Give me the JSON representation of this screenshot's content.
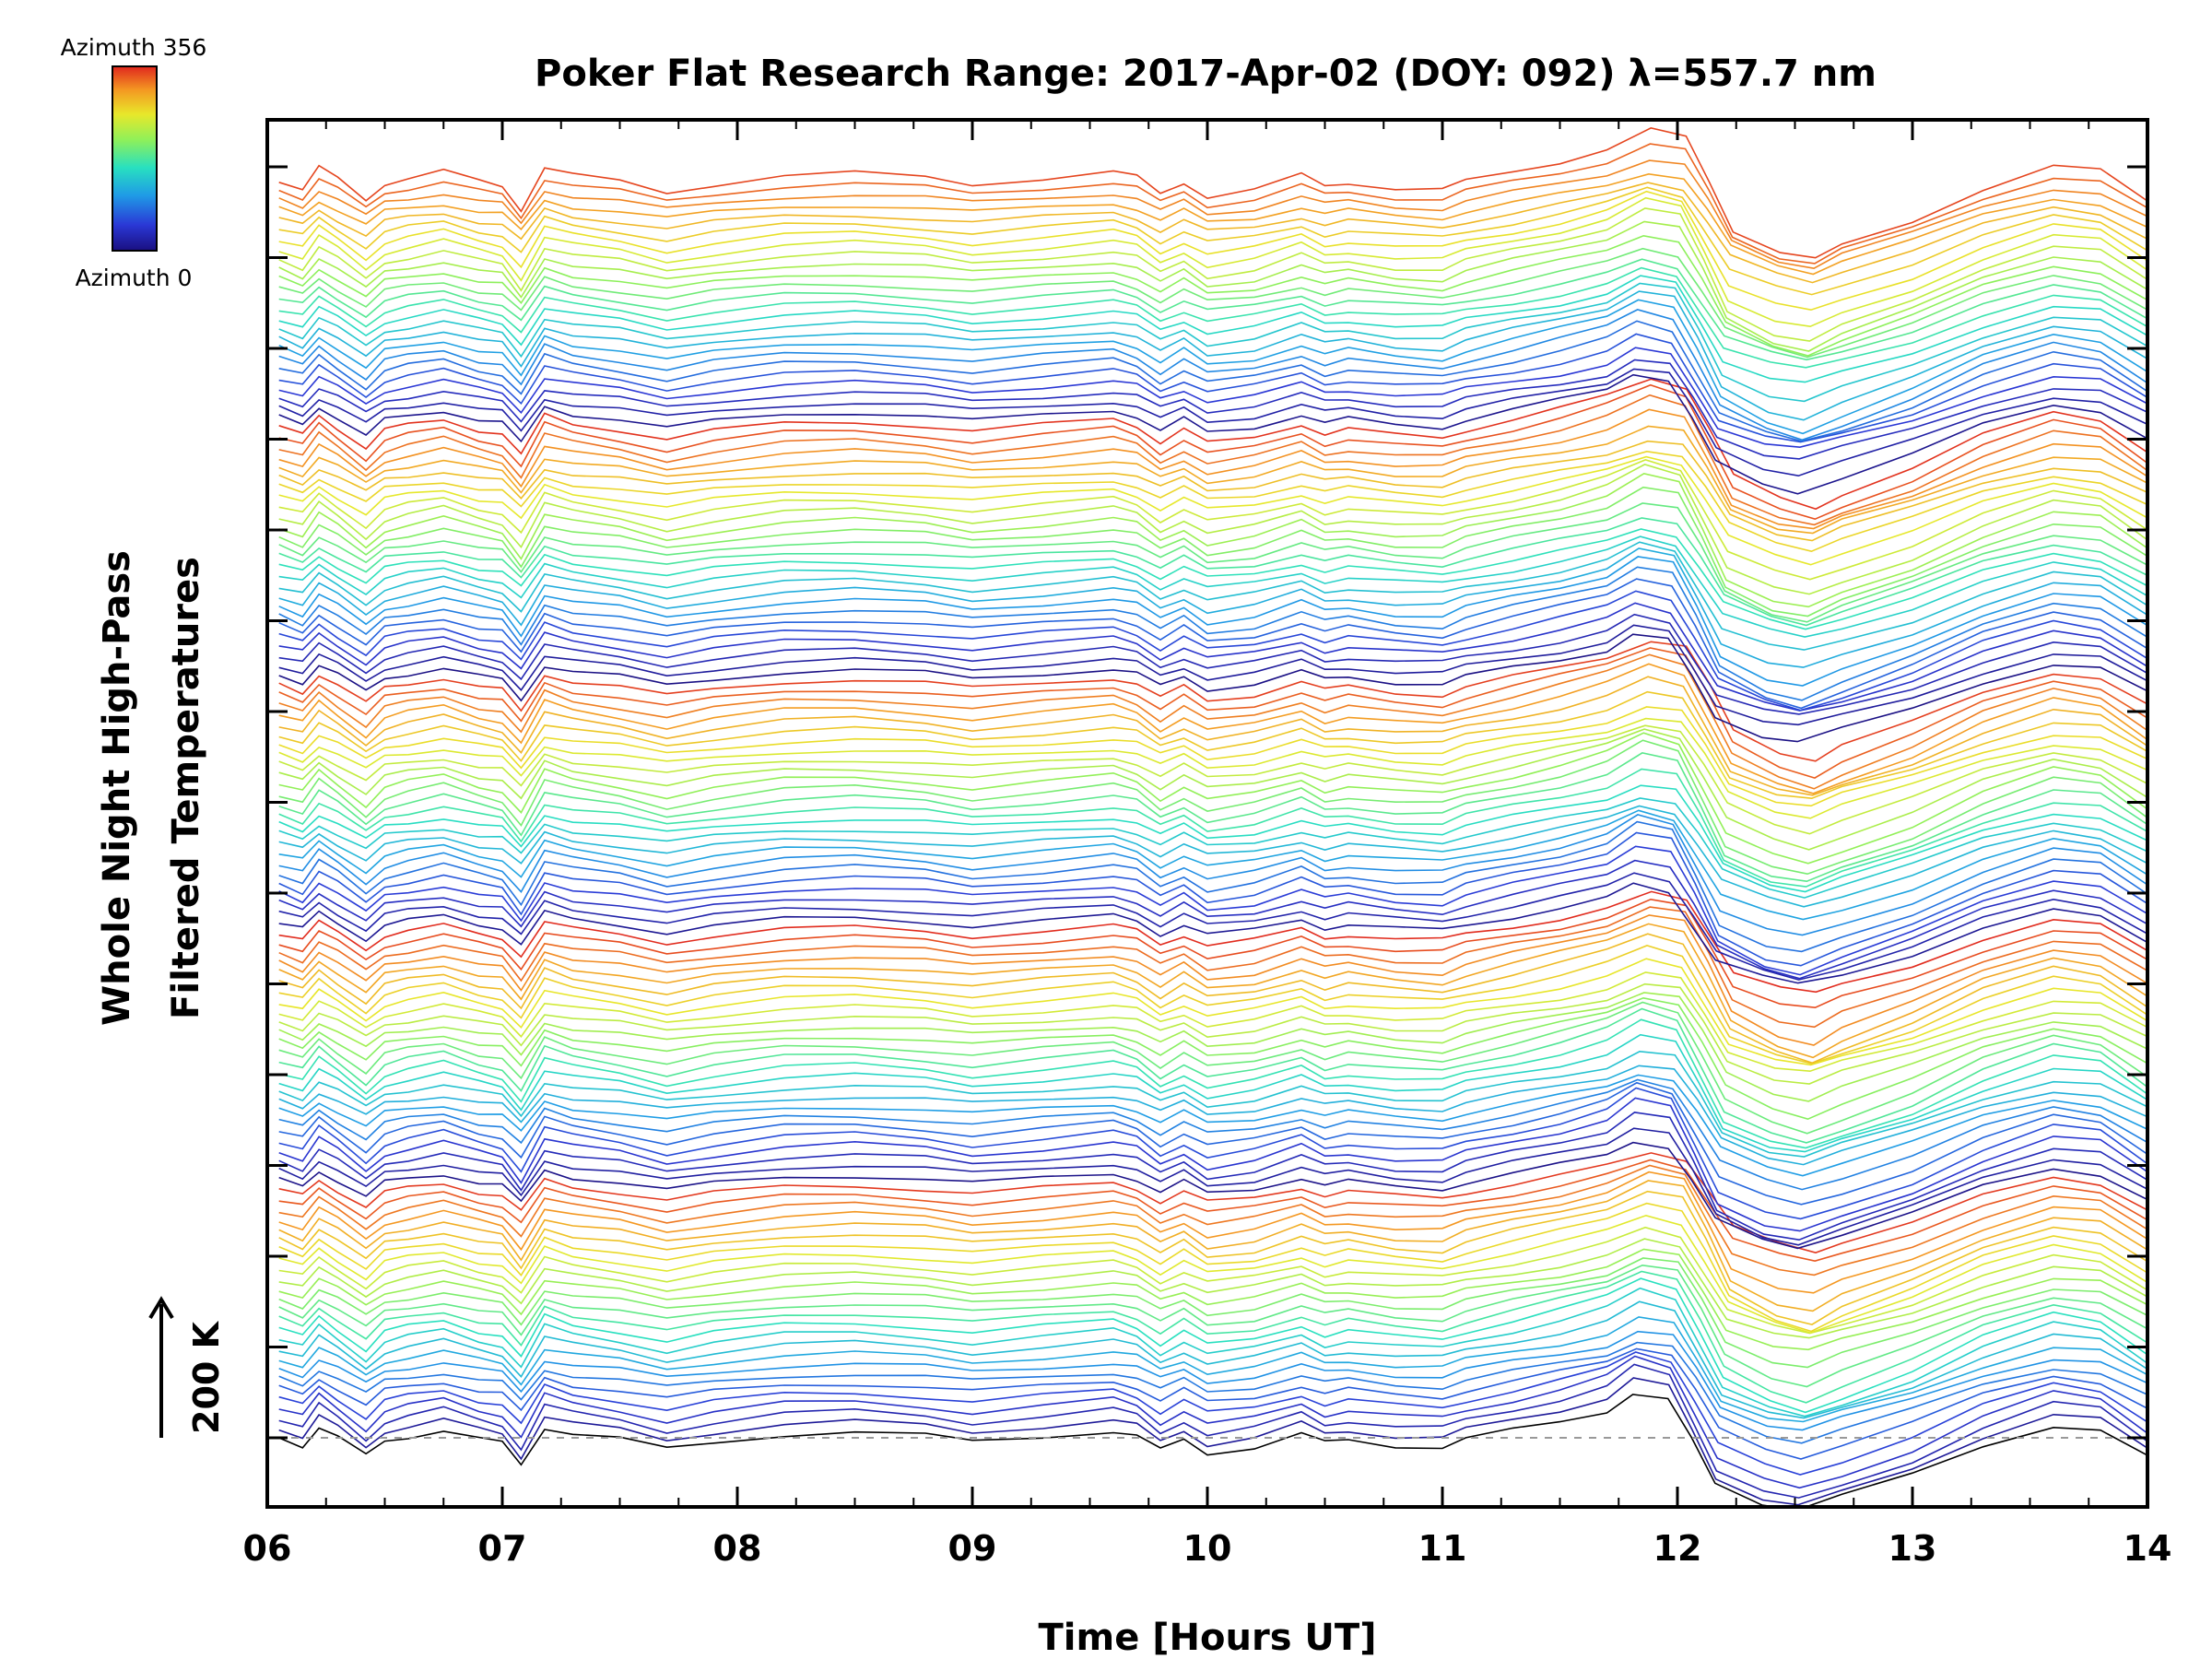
{
  "chart_data": {
    "type": "line",
    "title": "Poker Flat Research Range: 2017-Apr-02 (DOY: 092) λ=557.7 nm",
    "xlabel": "Time [Hours UT]",
    "ylabel_line1": "Whole Night High-Pass",
    "ylabel_line2": "Filtered Temperatures",
    "xlim": [
      6,
      14
    ],
    "x_ticks": [
      "06",
      "07",
      "08",
      "09",
      "10",
      "11",
      "12",
      "13",
      "14"
    ],
    "scale_bar_label": "200 K",
    "colorbar": {
      "top_label": "Azimuth 356",
      "bottom_label": "Azimuth 0",
      "colors": [
        "#1a0f80",
        "#2a38d6",
        "#1f9be6",
        "#28e0c0",
        "#8ef05a",
        "#e8e82a",
        "#f49a22",
        "#e0261e"
      ]
    },
    "grid": false,
    "series_count": 128,
    "groups": 5,
    "profile": {
      "x": [
        6.05,
        6.15,
        6.22,
        6.3,
        6.42,
        6.5,
        6.6,
        6.75,
        6.9,
        7.0,
        7.08,
        7.18,
        7.3,
        7.5,
        7.7,
        7.9,
        8.2,
        8.5,
        8.8,
        9.0,
        9.3,
        9.6,
        9.7,
        9.8,
        9.9,
        10.0,
        10.2,
        10.4,
        10.5,
        10.6,
        10.8,
        11.0,
        11.1,
        11.3,
        11.5,
        11.7,
        11.85,
        12.0,
        12.1,
        12.2,
        12.4,
        12.55,
        12.7,
        13.0,
        13.3,
        13.6,
        13.8,
        14.0
      ],
      "y": [
        0,
        -8,
        12,
        0,
        -20,
        -3,
        2,
        8,
        -2,
        -6,
        -28,
        12,
        4,
        -2,
        -12,
        -4,
        4,
        6,
        2,
        -4,
        2,
        8,
        2,
        -14,
        -2,
        -16,
        -10,
        4,
        -6,
        -2,
        -8,
        -10,
        -2,
        8,
        18,
        30,
        48,
        40,
        -2,
        -48,
        -70,
        -78,
        -64,
        -40,
        -8,
        14,
        8,
        -22
      ]
    }
  }
}
